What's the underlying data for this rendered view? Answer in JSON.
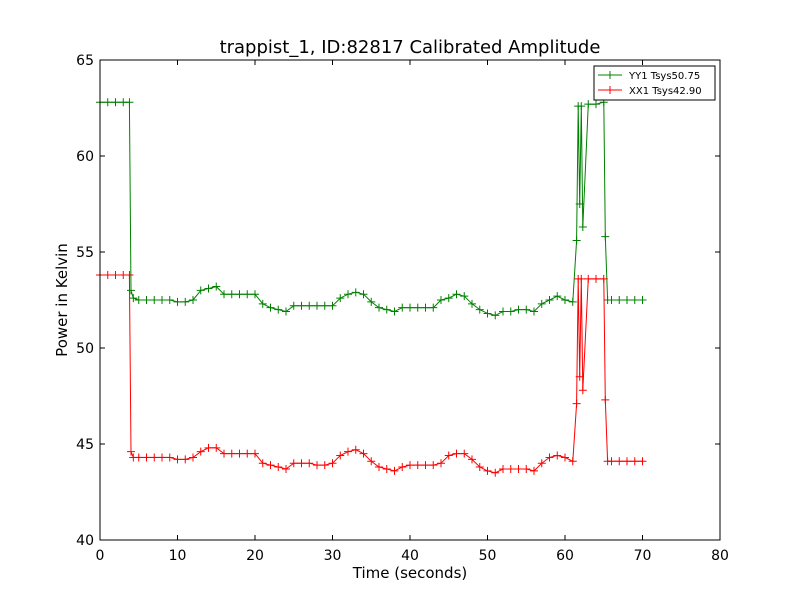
{
  "chart_data": {
    "type": "line",
    "title": "trappist_1, ID:82817 Calibrated Amplitude",
    "xlabel": "Time (seconds)",
    "ylabel": "Power in Kelvin",
    "xlim": [
      0,
      80
    ],
    "ylim": [
      40,
      65
    ],
    "xticks": [
      "0",
      "10",
      "20",
      "30",
      "40",
      "50",
      "60",
      "70",
      "80"
    ],
    "yticks": [
      "40",
      "45",
      "50",
      "55",
      "60",
      "65"
    ],
    "grid": false,
    "legend_position": "upper-right",
    "series": [
      {
        "name": "YY1 Tsys50.75",
        "color": "#008000",
        "marker": "+",
        "x": [
          0,
          1,
          2,
          3,
          3.8,
          4.0,
          4.3,
          5,
          6,
          7,
          8,
          9,
          10,
          11,
          12,
          13,
          14,
          15,
          16,
          17,
          18,
          19,
          20,
          21,
          22,
          23,
          24,
          25,
          26,
          27,
          28,
          29,
          30,
          31,
          32,
          33,
          34,
          35,
          36,
          37,
          38,
          39,
          40,
          41,
          42,
          43,
          44,
          45,
          46,
          47,
          48,
          49,
          50,
          51,
          52,
          53,
          54,
          55,
          56,
          57,
          58,
          59,
          60,
          61,
          61.5,
          61.7,
          61.9,
          62.1,
          62.3,
          63,
          64,
          65,
          65.2,
          65.5,
          66,
          67,
          68,
          69,
          70
        ],
        "y": [
          62.8,
          62.8,
          62.8,
          62.8,
          62.8,
          53.0,
          52.6,
          52.5,
          52.5,
          52.5,
          52.5,
          52.5,
          52.4,
          52.4,
          52.5,
          53.0,
          53.1,
          53.2,
          52.8,
          52.8,
          52.8,
          52.8,
          52.8,
          52.3,
          52.1,
          52.0,
          51.9,
          52.2,
          52.2,
          52.2,
          52.2,
          52.2,
          52.2,
          52.6,
          52.8,
          52.9,
          52.8,
          52.4,
          52.1,
          52.0,
          51.9,
          52.1,
          52.1,
          52.1,
          52.1,
          52.1,
          52.5,
          52.6,
          52.8,
          52.7,
          52.3,
          52.0,
          51.8,
          51.7,
          51.9,
          51.9,
          52.0,
          52.0,
          51.9,
          52.3,
          52.5,
          52.7,
          52.5,
          52.4,
          55.6,
          62.6,
          57.5,
          62.6,
          56.3,
          62.7,
          62.7,
          62.8,
          55.8,
          52.5,
          52.5,
          52.5,
          52.5,
          52.5,
          52.5
        ]
      },
      {
        "name": "XX1 Tsys42.90",
        "color": "#ff0000",
        "marker": "+",
        "x": [
          0,
          1,
          2,
          3,
          3.8,
          4.0,
          4.3,
          5,
          6,
          7,
          8,
          9,
          10,
          11,
          12,
          13,
          14,
          15,
          16,
          17,
          18,
          19,
          20,
          21,
          22,
          23,
          24,
          25,
          26,
          27,
          28,
          29,
          30,
          31,
          32,
          33,
          34,
          35,
          36,
          37,
          38,
          39,
          40,
          41,
          42,
          43,
          44,
          45,
          46,
          47,
          48,
          49,
          50,
          51,
          52,
          53,
          54,
          55,
          56,
          57,
          58,
          59,
          60,
          61,
          61.5,
          61.7,
          61.9,
          62.1,
          62.3,
          63,
          64,
          65,
          65.2,
          65.5,
          66,
          67,
          68,
          69,
          70
        ],
        "y": [
          53.8,
          53.8,
          53.8,
          53.8,
          53.8,
          44.6,
          44.3,
          44.3,
          44.3,
          44.3,
          44.3,
          44.3,
          44.2,
          44.2,
          44.3,
          44.6,
          44.8,
          44.8,
          44.5,
          44.5,
          44.5,
          44.5,
          44.5,
          44.0,
          43.9,
          43.8,
          43.7,
          44.0,
          44.0,
          44.0,
          43.9,
          43.9,
          44.0,
          44.4,
          44.6,
          44.7,
          44.5,
          44.1,
          43.8,
          43.7,
          43.6,
          43.8,
          43.9,
          43.9,
          43.9,
          43.9,
          44.0,
          44.4,
          44.5,
          44.5,
          44.2,
          43.8,
          43.6,
          43.5,
          43.7,
          43.7,
          43.7,
          43.7,
          43.6,
          44.0,
          44.3,
          44.4,
          44.3,
          44.1,
          47.1,
          53.6,
          48.5,
          53.6,
          47.8,
          53.6,
          53.6,
          53.6,
          47.3,
          44.1,
          44.1,
          44.1,
          44.1,
          44.1,
          44.1
        ]
      }
    ]
  }
}
